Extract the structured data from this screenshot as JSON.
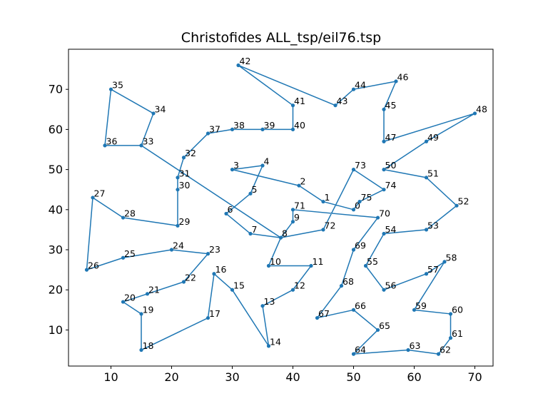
{
  "chart_data": {
    "type": "line",
    "title": "Christofides ALL_tsp/eil76.tsp",
    "xlabel": "",
    "ylabel": "",
    "xlim": [
      3,
      73
    ],
    "ylim": [
      1,
      80
    ],
    "xticks": [
      10,
      20,
      30,
      40,
      50,
      60,
      70
    ],
    "yticks": [
      10,
      20,
      30,
      40,
      50,
      60,
      70
    ],
    "line_color": "#1f77b4",
    "marker_color": "#1f77b4",
    "grid": false,
    "points": [
      {
        "label": "0",
        "x": 50,
        "y": 40
      },
      {
        "label": "1",
        "x": 45,
        "y": 42
      },
      {
        "label": "2",
        "x": 41,
        "y": 46
      },
      {
        "label": "3",
        "x": 30,
        "y": 50
      },
      {
        "label": "4",
        "x": 35,
        "y": 51
      },
      {
        "label": "5",
        "x": 33,
        "y": 44
      },
      {
        "label": "6",
        "x": 29,
        "y": 39
      },
      {
        "label": "7",
        "x": 33,
        "y": 34
      },
      {
        "label": "8",
        "x": 38,
        "y": 33
      },
      {
        "label": "9",
        "x": 40,
        "y": 37
      },
      {
        "label": "10",
        "x": 36,
        "y": 26
      },
      {
        "label": "11",
        "x": 43,
        "y": 26
      },
      {
        "label": "12",
        "x": 40,
        "y": 20
      },
      {
        "label": "13",
        "x": 35,
        "y": 16
      },
      {
        "label": "14",
        "x": 36,
        "y": 6
      },
      {
        "label": "15",
        "x": 30,
        "y": 20
      },
      {
        "label": "16",
        "x": 27,
        "y": 24
      },
      {
        "label": "17",
        "x": 26,
        "y": 13
      },
      {
        "label": "18",
        "x": 15,
        "y": 5
      },
      {
        "label": "19",
        "x": 15,
        "y": 14
      },
      {
        "label": "20",
        "x": 12,
        "y": 17
      },
      {
        "label": "21",
        "x": 16,
        "y": 19
      },
      {
        "label": "22",
        "x": 22,
        "y": 22
      },
      {
        "label": "23",
        "x": 26,
        "y": 29
      },
      {
        "label": "24",
        "x": 20,
        "y": 30
      },
      {
        "label": "25",
        "x": 12,
        "y": 28
      },
      {
        "label": "26",
        "x": 6,
        "y": 25
      },
      {
        "label": "27",
        "x": 7,
        "y": 43
      },
      {
        "label": "28",
        "x": 12,
        "y": 38
      },
      {
        "label": "29",
        "x": 21,
        "y": 36
      },
      {
        "label": "30",
        "x": 21,
        "y": 45
      },
      {
        "label": "31",
        "x": 21,
        "y": 48
      },
      {
        "label": "32",
        "x": 22,
        "y": 53
      },
      {
        "label": "33",
        "x": 15,
        "y": 56
      },
      {
        "label": "34",
        "x": 17,
        "y": 64
      },
      {
        "label": "35",
        "x": 10,
        "y": 70
      },
      {
        "label": "36",
        "x": 9,
        "y": 56
      },
      {
        "label": "37",
        "x": 26,
        "y": 59
      },
      {
        "label": "38",
        "x": 30,
        "y": 60
      },
      {
        "label": "39",
        "x": 35,
        "y": 60
      },
      {
        "label": "40",
        "x": 40,
        "y": 60
      },
      {
        "label": "41",
        "x": 40,
        "y": 66
      },
      {
        "label": "42",
        "x": 31,
        "y": 76
      },
      {
        "label": "43",
        "x": 47,
        "y": 66
      },
      {
        "label": "44",
        "x": 50,
        "y": 70
      },
      {
        "label": "45",
        "x": 55,
        "y": 65
      },
      {
        "label": "46",
        "x": 57,
        "y": 72
      },
      {
        "label": "47",
        "x": 55,
        "y": 57
      },
      {
        "label": "48",
        "x": 70,
        "y": 64
      },
      {
        "label": "49",
        "x": 62,
        "y": 57
      },
      {
        "label": "50",
        "x": 55,
        "y": 50
      },
      {
        "label": "51",
        "x": 62,
        "y": 48
      },
      {
        "label": "52",
        "x": 67,
        "y": 41
      },
      {
        "label": "53",
        "x": 62,
        "y": 35
      },
      {
        "label": "54",
        "x": 55,
        "y": 34
      },
      {
        "label": "55",
        "x": 52,
        "y": 26
      },
      {
        "label": "56",
        "x": 55,
        "y": 20
      },
      {
        "label": "57",
        "x": 62,
        "y": 24
      },
      {
        "label": "58",
        "x": 65,
        "y": 27
      },
      {
        "label": "59",
        "x": 60,
        "y": 15
      },
      {
        "label": "60",
        "x": 66,
        "y": 14
      },
      {
        "label": "61",
        "x": 66,
        "y": 8
      },
      {
        "label": "62",
        "x": 64,
        "y": 4
      },
      {
        "label": "63",
        "x": 59,
        "y": 5
      },
      {
        "label": "64",
        "x": 50,
        "y": 4
      },
      {
        "label": "65",
        "x": 54,
        "y": 10
      },
      {
        "label": "66",
        "x": 50,
        "y": 15
      },
      {
        "label": "67",
        "x": 44,
        "y": 13
      },
      {
        "label": "68",
        "x": 48,
        "y": 21
      },
      {
        "label": "69",
        "x": 50,
        "y": 30
      },
      {
        "label": "70",
        "x": 54,
        "y": 38
      },
      {
        "label": "71",
        "x": 40,
        "y": 40
      },
      {
        "label": "72",
        "x": 45,
        "y": 35
      },
      {
        "label": "73",
        "x": 50,
        "y": 50
      },
      {
        "label": "74",
        "x": 55,
        "y": 45
      },
      {
        "label": "75",
        "x": 51,
        "y": 42
      }
    ],
    "tour": [
      1,
      2,
      3,
      4,
      5,
      6,
      7,
      8,
      9,
      71,
      70,
      69,
      68,
      67,
      66,
      65,
      64,
      63,
      62,
      61,
      60,
      59,
      58,
      57,
      56,
      55,
      54,
      53,
      52,
      51,
      50,
      49,
      48,
      47,
      45,
      46,
      44,
      43,
      42,
      41,
      40,
      39,
      38,
      37,
      32,
      31,
      30,
      29,
      28,
      27,
      26,
      25,
      24,
      23,
      22,
      21,
      20,
      19,
      18,
      17,
      16,
      15,
      14,
      13,
      12,
      11,
      10,
      8,
      33,
      34,
      35,
      36,
      33,
      8,
      72,
      73,
      74,
      75,
      0,
      1
    ]
  }
}
